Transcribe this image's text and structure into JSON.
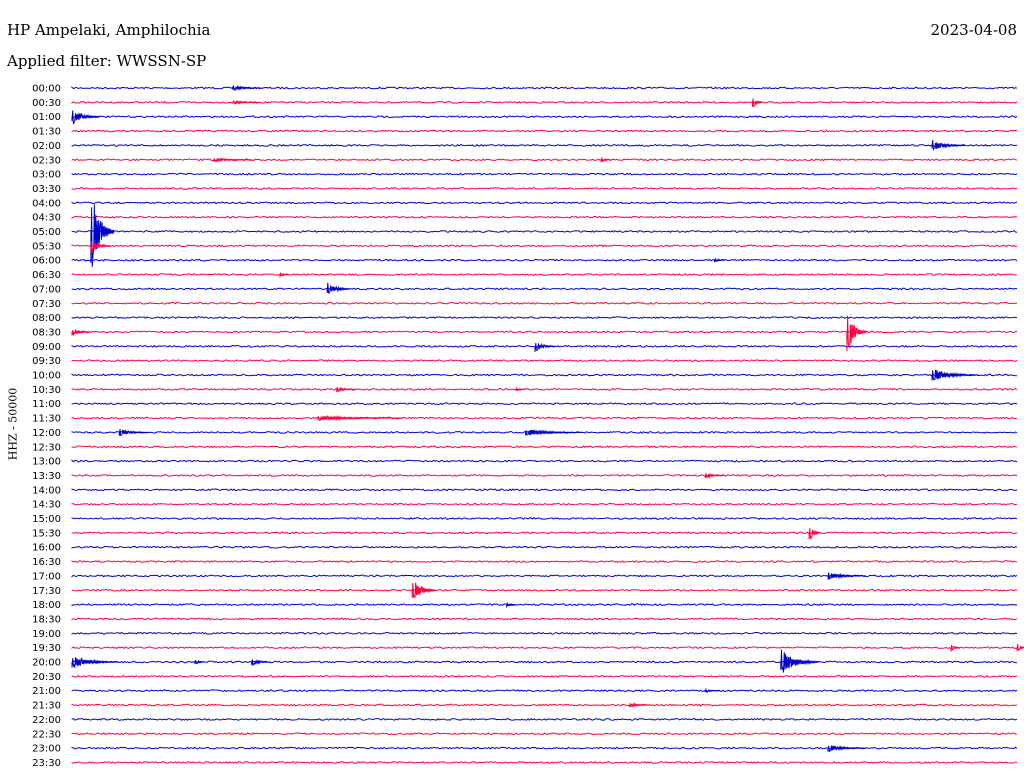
{
  "header": {
    "station": "HP Ampelaki, Amphilochia",
    "date": "2023-04-08",
    "filter": "Applied filter: WWSSN-SP"
  },
  "chart_data": {
    "type": "line",
    "title": "HP Ampelaki, Amphilochia",
    "ylabel": "HHZ - 50000",
    "grid": false,
    "colors": [
      "#0000cc",
      "#ff0040"
    ],
    "rows": [
      "00:00",
      "00:30",
      "01:00",
      "01:30",
      "02:00",
      "02:30",
      "03:00",
      "03:30",
      "04:00",
      "04:30",
      "05:00",
      "05:30",
      "06:00",
      "06:30",
      "07:00",
      "07:30",
      "08:00",
      "08:30",
      "09:00",
      "09:30",
      "10:00",
      "10:30",
      "11:00",
      "11:30",
      "12:00",
      "12:30",
      "13:00",
      "13:30",
      "14:00",
      "14:30",
      "15:00",
      "15:30",
      "16:00",
      "16:30",
      "17:00",
      "17:30",
      "18:00",
      "18:30",
      "19:00",
      "19:30",
      "20:00",
      "20:30",
      "21:00",
      "21:30",
      "22:00",
      "22:30",
      "23:00",
      "23:30"
    ],
    "events": [
      {
        "row": 0,
        "t": 0.17,
        "amp": 3,
        "dur": 0.03
      },
      {
        "row": 1,
        "t": 0.17,
        "amp": 2,
        "dur": 0.03
      },
      {
        "row": 1,
        "t": 0.72,
        "amp": 7,
        "dur": 0.01
      },
      {
        "row": 2,
        "t": 0.0,
        "amp": 8,
        "dur": 0.03
      },
      {
        "row": 4,
        "t": 0.91,
        "amp": 6,
        "dur": 0.035
      },
      {
        "row": 5,
        "t": 0.15,
        "amp": 2,
        "dur": 0.04
      },
      {
        "row": 5,
        "t": 0.56,
        "amp": 3,
        "dur": 0.01
      },
      {
        "row": 10,
        "t": 0.02,
        "amp": 45,
        "dur": 0.025
      },
      {
        "row": 11,
        "t": 0.02,
        "amp": 8,
        "dur": 0.02
      },
      {
        "row": 12,
        "t": 0.68,
        "amp": 3,
        "dur": 0.01
      },
      {
        "row": 13,
        "t": 0.22,
        "amp": 3,
        "dur": 0.01
      },
      {
        "row": 14,
        "t": 0.27,
        "amp": 7,
        "dur": 0.025
      },
      {
        "row": 17,
        "t": 0.0,
        "amp": 4,
        "dur": 0.02
      },
      {
        "row": 17,
        "t": 0.82,
        "amp": 25,
        "dur": 0.02
      },
      {
        "row": 18,
        "t": 0.49,
        "amp": 6,
        "dur": 0.02
      },
      {
        "row": 20,
        "t": 0.91,
        "amp": 7,
        "dur": 0.05
      },
      {
        "row": 21,
        "t": 0.28,
        "amp": 3,
        "dur": 0.02
      },
      {
        "row": 21,
        "t": 0.47,
        "amp": 3,
        "dur": 0.01
      },
      {
        "row": 23,
        "t": 0.26,
        "amp": 3,
        "dur": 0.09
      },
      {
        "row": 24,
        "t": 0.05,
        "amp": 4,
        "dur": 0.03
      },
      {
        "row": 24,
        "t": 0.48,
        "amp": 4,
        "dur": 0.06
      },
      {
        "row": 27,
        "t": 0.67,
        "amp": 3,
        "dur": 0.02
      },
      {
        "row": 31,
        "t": 0.78,
        "amp": 11,
        "dur": 0.012
      },
      {
        "row": 34,
        "t": 0.8,
        "amp": 4,
        "dur": 0.04
      },
      {
        "row": 35,
        "t": 0.36,
        "amp": 14,
        "dur": 0.025
      },
      {
        "row": 36,
        "t": 0.46,
        "amp": 3,
        "dur": 0.01
      },
      {
        "row": 39,
        "t": 0.93,
        "amp": 4,
        "dur": 0.01
      },
      {
        "row": 39,
        "t": 1.0,
        "amp": 6,
        "dur": 0.01
      },
      {
        "row": 40,
        "t": 0.0,
        "amp": 7,
        "dur": 0.05
      },
      {
        "row": 40,
        "t": 0.13,
        "amp": 4,
        "dur": 0.01
      },
      {
        "row": 40,
        "t": 0.19,
        "amp": 4,
        "dur": 0.02
      },
      {
        "row": 40,
        "t": 0.75,
        "amp": 14,
        "dur": 0.04
      },
      {
        "row": 42,
        "t": 0.67,
        "amp": 2,
        "dur": 0.015
      },
      {
        "row": 43,
        "t": 0.59,
        "amp": 3,
        "dur": 0.02
      },
      {
        "row": 46,
        "t": 0.8,
        "amp": 4,
        "dur": 0.04
      }
    ]
  }
}
